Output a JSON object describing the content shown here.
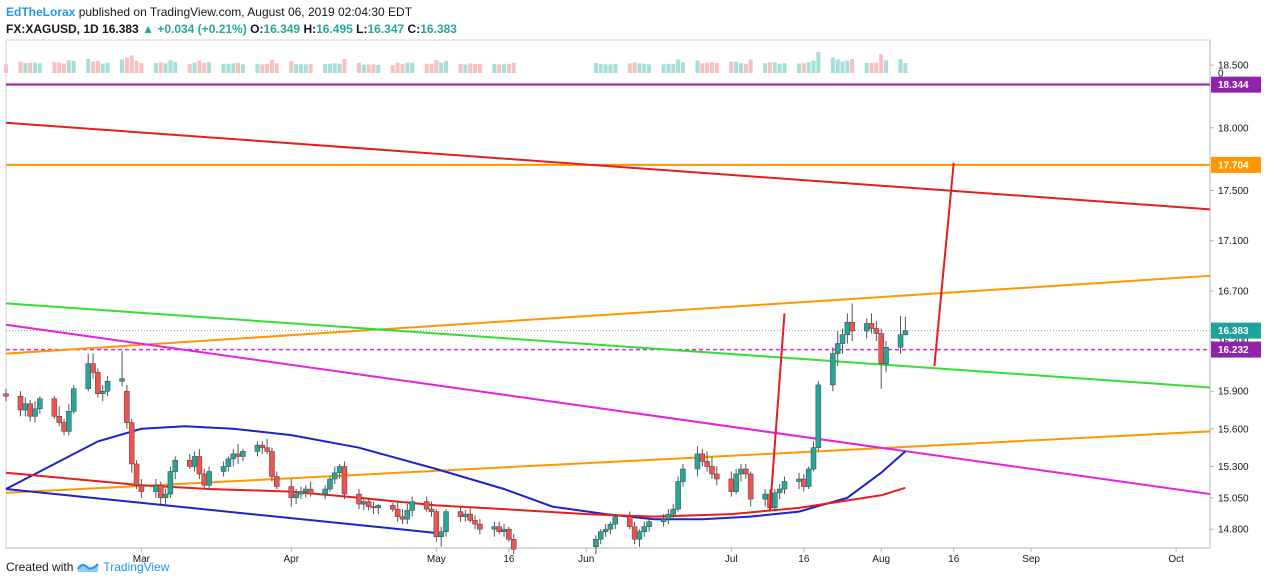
{
  "header": {
    "author": "EdTheLorax",
    "published": "published on TradingView.com, August 06, 2019 02:04:30 EDT",
    "symbol": "FX:XAGUSD, 1D",
    "last": "16.383",
    "change_arrow": "▲",
    "change": "+0.034 (+0.21%)",
    "open_label": "O:",
    "open": "16.349",
    "high_label": "H:",
    "high": "16.495",
    "low_label": "L:",
    "low": "16.347",
    "close_label": "C:",
    "close": "16.383"
  },
  "footer": {
    "created_with": "Created with",
    "brand": "TradingView",
    "logo_icon": "tradingview-logo-icon"
  },
  "colors": {
    "bull": "#26a69a",
    "bear": "#ef5350",
    "sma_blue": "#1e22cc",
    "sma_red": "#e61e1e",
    "orange": "#ff9800",
    "magenta": "#e620e0",
    "purple": "#9c27b0",
    "green": "#33dd33",
    "badge_orange": "#ff9800",
    "badge_price": "#1ba39c",
    "badge_purple": "#8e24aa"
  },
  "chart_data": {
    "type": "candlestick",
    "symbol": "FX:XAGUSD",
    "interval": "1D",
    "y_axis": {
      "ticks": [
        "18.500",
        "18.000",
        "17.500",
        "17.100",
        "16.700",
        "16.300",
        "15.900",
        "15.600",
        "15.300",
        "15.050",
        "14.800"
      ],
      "volume_tick": "0",
      "ylim": [
        14.65,
        18.7
      ]
    },
    "x_axis": {
      "ticks": [
        "Mar",
        "Apr",
        "May",
        "16",
        "Jun",
        "Jul",
        "16",
        "Aug",
        "16",
        "Sep",
        "Oct"
      ],
      "range": [
        "2019-02-01",
        "2019-10-08"
      ]
    },
    "price_badges": [
      {
        "label": "18.344",
        "value": 18.344,
        "color": "badge_purple"
      },
      {
        "label": "17.704",
        "value": 17.704,
        "color": "badge_orange"
      },
      {
        "label": "16.383",
        "value": 16.383,
        "color": "badge_price"
      },
      {
        "label": "16.232",
        "value": 16.232,
        "color": "badge_purple"
      }
    ],
    "horizontal_levels": [
      {
        "value": 18.344,
        "color": "purple",
        "style": "solid"
      },
      {
        "value": 17.704,
        "color": "orange",
        "style": "solid"
      },
      {
        "value": 16.232,
        "color": "magenta",
        "style": "dashed"
      },
      {
        "value": 16.383,
        "color": "#999999",
        "style": "dotted"
      }
    ],
    "trendlines": [
      {
        "name": "red-resistance",
        "color": "sma_red",
        "from": [
          "2019-02-01",
          18.04
        ],
        "to": [
          "2019-10-08",
          17.35
        ]
      },
      {
        "name": "orange-upper",
        "color": "orange",
        "from": [
          "2019-02-01",
          16.2
        ],
        "to": [
          "2019-10-08",
          16.82
        ]
      },
      {
        "name": "orange-lower",
        "color": "orange",
        "from": [
          "2019-02-01",
          15.09
        ],
        "to": [
          "2019-10-08",
          15.58
        ]
      },
      {
        "name": "green-line",
        "color": "green",
        "from": [
          "2019-02-01",
          16.6
        ],
        "to": [
          "2019-10-08",
          15.93
        ]
      },
      {
        "name": "magenta-line",
        "color": "magenta",
        "from": [
          "2019-02-01",
          16.43
        ],
        "to": [
          "2019-10-08",
          15.08
        ]
      },
      {
        "name": "blue-line",
        "color": "sma_blue",
        "from": [
          "2019-02-01",
          15.12
        ],
        "to": [
          "2019-05-01",
          14.77
        ]
      }
    ],
    "projections": [
      {
        "color": "sma_red",
        "from": [
          "2019-07-09",
          14.95
        ],
        "to": [
          "2019-07-12",
          16.52
        ]
      },
      {
        "color": "sma_red",
        "from": [
          "2019-08-12",
          16.1
        ],
        "to": [
          "2019-08-16",
          17.72
        ]
      }
    ],
    "moving_averages": [
      {
        "color": "sma_blue",
        "points": [
          [
            "2019-02-01",
            15.12
          ],
          [
            "2019-02-10",
            15.3
          ],
          [
            "2019-02-20",
            15.5
          ],
          [
            "2019-03-01",
            15.6
          ],
          [
            "2019-03-10",
            15.62
          ],
          [
            "2019-03-20",
            15.6
          ],
          [
            "2019-04-01",
            15.55
          ],
          [
            "2019-04-15",
            15.45
          ],
          [
            "2019-05-01",
            15.28
          ],
          [
            "2019-05-15",
            15.12
          ],
          [
            "2019-05-25",
            14.98
          ],
          [
            "2019-06-05",
            14.92
          ],
          [
            "2019-06-15",
            14.88
          ],
          [
            "2019-06-25",
            14.88
          ],
          [
            "2019-07-05",
            14.9
          ],
          [
            "2019-07-15",
            14.94
          ],
          [
            "2019-07-25",
            15.05
          ],
          [
            "2019-08-01",
            15.25
          ],
          [
            "2019-08-06",
            15.42
          ]
        ]
      },
      {
        "color": "sma_red",
        "points": [
          [
            "2019-02-01",
            15.25
          ],
          [
            "2019-02-15",
            15.2
          ],
          [
            "2019-03-01",
            15.15
          ],
          [
            "2019-03-15",
            15.12
          ],
          [
            "2019-04-01",
            15.1
          ],
          [
            "2019-04-15",
            15.05
          ],
          [
            "2019-05-01",
            14.99
          ],
          [
            "2019-05-15",
            14.96
          ],
          [
            "2019-06-01",
            14.92
          ],
          [
            "2019-06-15",
            14.9
          ],
          [
            "2019-07-01",
            14.92
          ],
          [
            "2019-07-15",
            14.97
          ],
          [
            "2019-08-01",
            15.07
          ],
          [
            "2019-08-06",
            15.13
          ]
        ]
      }
    ],
    "candles": [
      [
        "2019-02-01",
        15.88,
        15.92,
        15.82,
        15.86
      ],
      [
        "2019-02-04",
        15.86,
        15.9,
        15.7,
        15.75
      ],
      [
        "2019-02-05",
        15.75,
        15.85,
        15.7,
        15.8
      ],
      [
        "2019-02-06",
        15.8,
        15.83,
        15.66,
        15.7
      ],
      [
        "2019-02-07",
        15.7,
        15.82,
        15.65,
        15.76
      ],
      [
        "2019-02-08",
        15.76,
        15.86,
        15.72,
        15.84
      ],
      [
        "2019-02-11",
        15.84,
        15.86,
        15.68,
        15.7
      ],
      [
        "2019-02-12",
        15.7,
        15.78,
        15.62,
        15.65
      ],
      [
        "2019-02-13",
        15.65,
        15.68,
        15.55,
        15.58
      ],
      [
        "2019-02-14",
        15.58,
        15.8,
        15.55,
        15.74
      ],
      [
        "2019-02-15",
        15.74,
        15.95,
        15.72,
        15.92
      ],
      [
        "2019-02-18",
        15.92,
        16.2,
        15.9,
        16.12
      ],
      [
        "2019-02-19",
        16.12,
        16.2,
        16.0,
        16.05
      ],
      [
        "2019-02-20",
        16.05,
        16.08,
        15.85,
        15.88
      ],
      [
        "2019-02-21",
        15.88,
        15.95,
        15.82,
        15.9
      ],
      [
        "2019-02-22",
        15.9,
        16.02,
        15.86,
        15.98
      ],
      [
        "2019-02-25",
        15.98,
        16.22,
        15.94,
        16.0
      ],
      [
        "2019-02-26",
        15.9,
        15.95,
        15.6,
        15.65
      ],
      [
        "2019-02-27",
        15.65,
        15.68,
        15.25,
        15.32
      ],
      [
        "2019-02-28",
        15.32,
        15.35,
        15.12,
        15.15
      ],
      [
        "2019-03-01",
        15.15,
        15.2,
        15.05,
        15.1
      ],
      [
        "2019-03-04",
        15.1,
        15.2,
        15.05,
        15.15
      ],
      [
        "2019-03-05",
        15.15,
        15.18,
        15.0,
        15.05
      ],
      [
        "2019-03-06",
        15.05,
        15.12,
        14.98,
        15.08
      ],
      [
        "2019-03-07",
        15.08,
        15.3,
        15.05,
        15.26
      ],
      [
        "2019-03-08",
        15.26,
        15.38,
        15.2,
        15.35
      ],
      [
        "2019-03-11",
        15.35,
        15.4,
        15.28,
        15.3
      ],
      [
        "2019-03-12",
        15.3,
        15.42,
        15.26,
        15.38
      ],
      [
        "2019-03-13",
        15.38,
        15.44,
        15.2,
        15.24
      ],
      [
        "2019-03-14",
        15.24,
        15.28,
        15.12,
        15.15
      ],
      [
        "2019-03-15",
        15.15,
        15.3,
        15.12,
        15.26
      ],
      [
        "2019-03-18",
        15.26,
        15.34,
        15.22,
        15.3
      ],
      [
        "2019-03-19",
        15.3,
        15.38,
        15.26,
        15.36
      ],
      [
        "2019-03-20",
        15.36,
        15.44,
        15.3,
        15.4
      ],
      [
        "2019-03-21",
        15.4,
        15.48,
        15.32,
        15.38
      ],
      [
        "2019-03-22",
        15.38,
        15.44,
        15.34,
        15.42
      ],
      [
        "2019-03-25",
        15.42,
        15.5,
        15.38,
        15.47
      ],
      [
        "2019-03-26",
        15.47,
        15.5,
        15.4,
        15.45
      ],
      [
        "2019-03-27",
        15.45,
        15.52,
        15.4,
        15.42
      ],
      [
        "2019-03-28",
        15.42,
        15.45,
        15.18,
        15.22
      ],
      [
        "2019-03-29",
        15.22,
        15.26,
        15.12,
        15.14
      ],
      [
        "2019-04-01",
        15.14,
        15.2,
        14.98,
        15.05
      ],
      [
        "2019-04-02",
        15.05,
        15.12,
        15.0,
        15.08
      ],
      [
        "2019-04-03",
        15.08,
        15.14,
        15.04,
        15.1
      ],
      [
        "2019-04-04",
        15.1,
        15.15,
        15.05,
        15.12
      ],
      [
        "2019-04-05",
        15.12,
        15.18,
        15.06,
        15.08
      ],
      [
        "2019-04-08",
        15.08,
        15.15,
        15.04,
        15.12
      ],
      [
        "2019-04-09",
        15.12,
        15.22,
        15.1,
        15.2
      ],
      [
        "2019-04-10",
        15.2,
        15.3,
        15.16,
        15.25
      ],
      [
        "2019-04-11",
        15.25,
        15.32,
        15.2,
        15.3
      ],
      [
        "2019-04-12",
        15.3,
        15.34,
        15.04,
        15.08
      ],
      [
        "2019-04-15",
        15.08,
        15.12,
        14.96,
        15.0
      ],
      [
        "2019-04-16",
        15.0,
        15.04,
        14.95,
        15.02
      ],
      [
        "2019-04-17",
        15.02,
        15.04,
        14.95,
        14.98
      ],
      [
        "2019-04-18",
        14.98,
        15.02,
        14.92,
        14.97
      ],
      [
        "2019-04-19",
        14.97,
        15.0,
        14.92,
        14.99
      ],
      [
        "2019-04-22",
        14.99,
        15.01,
        14.94,
        14.96
      ],
      [
        "2019-04-23",
        14.96,
        15.02,
        14.86,
        14.9
      ],
      [
        "2019-04-24",
        14.9,
        14.96,
        14.84,
        14.88
      ],
      [
        "2019-04-25",
        14.88,
        15.0,
        14.84,
        14.95
      ],
      [
        "2019-04-26",
        14.95,
        15.06,
        14.9,
        15.02
      ],
      [
        "2019-04-29",
        15.02,
        15.06,
        14.94,
        14.96
      ],
      [
        "2019-04-30",
        14.96,
        15.02,
        14.9,
        14.94
      ],
      [
        "2019-05-01",
        14.94,
        14.96,
        14.7,
        14.74
      ],
      [
        "2019-05-02",
        14.74,
        14.82,
        14.66,
        14.78
      ],
      [
        "2019-05-03",
        14.78,
        14.96,
        14.74,
        14.94
      ],
      [
        "2019-05-06",
        14.94,
        14.98,
        14.86,
        14.9
      ],
      [
        "2019-05-07",
        14.9,
        14.95,
        14.86,
        14.92
      ],
      [
        "2019-05-08",
        14.92,
        14.98,
        14.85,
        14.87
      ],
      [
        "2019-05-09",
        14.87,
        14.91,
        14.8,
        14.84
      ],
      [
        "2019-05-10",
        14.84,
        14.88,
        14.76,
        14.8
      ],
      [
        "2019-05-13",
        14.8,
        14.86,
        14.74,
        14.82
      ],
      [
        "2019-05-14",
        14.82,
        14.86,
        14.76,
        14.78
      ],
      [
        "2019-05-15",
        14.78,
        14.84,
        14.74,
        14.8
      ],
      [
        "2019-05-16",
        14.8,
        14.82,
        14.7,
        14.72
      ],
      [
        "2019-05-17",
        14.72,
        14.76,
        14.6,
        14.64
      ],
      [
        "2019-06-03",
        14.66,
        14.75,
        14.6,
        14.72
      ],
      [
        "2019-06-04",
        14.72,
        14.8,
        14.68,
        14.78
      ],
      [
        "2019-06-05",
        14.78,
        14.84,
        14.74,
        14.8
      ],
      [
        "2019-06-06",
        14.8,
        14.86,
        14.76,
        14.84
      ],
      [
        "2019-06-07",
        14.84,
        14.92,
        14.8,
        14.9
      ],
      [
        "2019-06-10",
        14.9,
        14.94,
        14.8,
        14.82
      ],
      [
        "2019-06-11",
        14.82,
        14.86,
        14.68,
        14.72
      ],
      [
        "2019-06-12",
        14.72,
        14.8,
        14.66,
        14.78
      ],
      [
        "2019-06-13",
        14.78,
        14.86,
        14.74,
        14.82
      ],
      [
        "2019-06-14",
        14.82,
        14.88,
        14.78,
        14.86
      ],
      [
        "2019-06-17",
        14.86,
        14.92,
        14.82,
        14.88
      ],
      [
        "2019-06-18",
        14.88,
        14.96,
        14.84,
        14.92
      ],
      [
        "2019-06-19",
        14.92,
        15.0,
        14.88,
        14.96
      ],
      [
        "2019-06-20",
        14.96,
        15.22,
        14.94,
        15.18
      ],
      [
        "2019-06-21",
        15.18,
        15.32,
        15.14,
        15.28
      ],
      [
        "2019-06-24",
        15.28,
        15.46,
        15.22,
        15.4
      ],
      [
        "2019-06-25",
        15.4,
        15.44,
        15.3,
        15.34
      ],
      [
        "2019-06-26",
        15.34,
        15.42,
        15.26,
        15.3
      ],
      [
        "2019-06-27",
        15.3,
        15.38,
        15.2,
        15.24
      ],
      [
        "2019-06-28",
        15.24,
        15.3,
        15.15,
        15.2
      ],
      [
        "2019-07-01",
        15.2,
        15.26,
        15.06,
        15.1
      ],
      [
        "2019-07-02",
        15.1,
        15.28,
        15.08,
        15.24
      ],
      [
        "2019-07-03",
        15.24,
        15.32,
        15.18,
        15.28
      ],
      [
        "2019-07-04",
        15.28,
        15.32,
        15.2,
        15.24
      ],
      [
        "2019-07-05",
        15.24,
        15.26,
        14.98,
        15.04
      ],
      [
        "2019-07-08",
        15.04,
        15.12,
        14.98,
        15.08
      ],
      [
        "2019-07-09",
        15.08,
        15.12,
        14.94,
        14.97
      ],
      [
        "2019-07-10",
        14.97,
        15.12,
        14.94,
        15.09
      ],
      [
        "2019-07-11",
        15.09,
        15.16,
        15.04,
        15.12
      ],
      [
        "2019-07-12",
        15.12,
        15.22,
        15.08,
        15.18
      ],
      [
        "2019-07-15",
        15.18,
        15.25,
        15.12,
        15.2
      ],
      [
        "2019-07-16",
        15.2,
        15.24,
        15.1,
        15.14
      ],
      [
        "2019-07-17",
        15.14,
        15.3,
        15.12,
        15.28
      ],
      [
        "2019-07-18",
        15.28,
        15.5,
        15.26,
        15.45
      ],
      [
        "2019-07-19",
        15.45,
        15.98,
        15.42,
        15.95
      ],
      [
        "2019-07-22",
        15.95,
        16.25,
        15.9,
        16.2
      ],
      [
        "2019-07-23",
        16.2,
        16.38,
        16.1,
        16.28
      ],
      [
        "2019-07-24",
        16.28,
        16.4,
        16.2,
        16.35
      ],
      [
        "2019-07-25",
        16.35,
        16.52,
        16.28,
        16.45
      ],
      [
        "2019-07-26",
        16.45,
        16.6,
        16.3,
        16.38
      ],
      [
        "2019-07-29",
        16.38,
        16.48,
        16.32,
        16.44
      ],
      [
        "2019-07-30",
        16.44,
        16.52,
        16.36,
        16.4
      ],
      [
        "2019-07-31",
        16.4,
        16.46,
        16.3,
        16.36
      ],
      [
        "2019-08-01",
        16.36,
        16.4,
        15.92,
        16.12
      ],
      [
        "2019-08-02",
        16.12,
        16.3,
        16.05,
        16.25
      ],
      [
        "2019-08-05",
        16.25,
        16.5,
        16.2,
        16.35
      ],
      [
        "2019-08-06",
        16.349,
        16.495,
        16.347,
        16.383
      ]
    ],
    "volume_note": "histogram of daily volume aligned to candles"
  }
}
